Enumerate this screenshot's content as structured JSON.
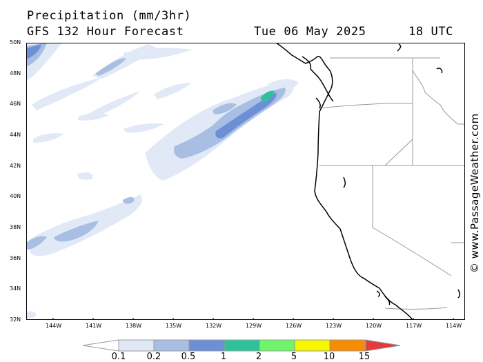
{
  "header": {
    "title": "Precipitation (mm/3hr)",
    "subtitle": "GFS 132 Hour Forecast",
    "valid_date": "Tue 06 May 2025",
    "valid_time": "18 UTC"
  },
  "credit": "© www.PassageWeather.com",
  "map": {
    "lat_range": [
      32,
      50
    ],
    "lon_range": [
      -146,
      -112
    ],
    "lat_labels": [
      "50N",
      "48N",
      "46N",
      "44N",
      "42N",
      "40N",
      "38N",
      "36N",
      "34N",
      "32N"
    ],
    "lon_labels": [
      "144W",
      "141W",
      "138W",
      "135W",
      "132W",
      "129W",
      "126W",
      "123W",
      "120W",
      "117W",
      "114W"
    ],
    "land_color": "#ffffff",
    "coastline_color": "#000000",
    "border_color": "#999999"
  },
  "legend": {
    "labels": [
      "0.1",
      "0.2",
      "0.5",
      "1",
      "2",
      "5",
      "10",
      "15"
    ],
    "colors": [
      "#ffffff",
      "#e1e9f7",
      "#a8bfe3",
      "#6d8fd6",
      "#2fc29a",
      "#6ff56b",
      "#f7f700",
      "#f78c00",
      "#e33b3b"
    ]
  }
}
